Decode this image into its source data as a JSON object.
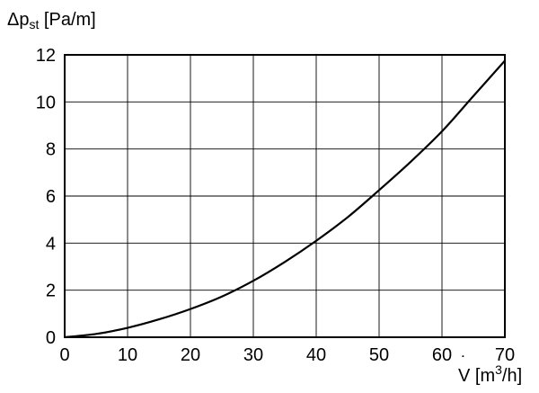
{
  "chart_data": {
    "type": "line",
    "ylabel": {
      "base": "Δp",
      "sub": "st",
      "unit": " [Pa/m]"
    },
    "xlabel": {
      "base": "V",
      "dot": "˙",
      "unit_pre": " [m",
      "sup": "3",
      "unit_post": "/h]"
    },
    "xlim": [
      0,
      70
    ],
    "ylim": [
      0,
      12
    ],
    "x_ticks": [
      "0",
      "10",
      "20",
      "30",
      "40",
      "50",
      "60",
      "70"
    ],
    "y_ticks": [
      "0",
      "2",
      "4",
      "6",
      "8",
      "10",
      "12"
    ],
    "grid": true,
    "series": [
      {
        "x": [
          0,
          5,
          10,
          15,
          20,
          25,
          30,
          35,
          40,
          45,
          50,
          55,
          60,
          65,
          70
        ],
        "values": [
          0,
          0.14,
          0.4,
          0.76,
          1.2,
          1.73,
          2.4,
          3.2,
          4.1,
          5.1,
          6.25,
          7.45,
          8.75,
          10.25,
          11.75
        ]
      }
    ]
  }
}
